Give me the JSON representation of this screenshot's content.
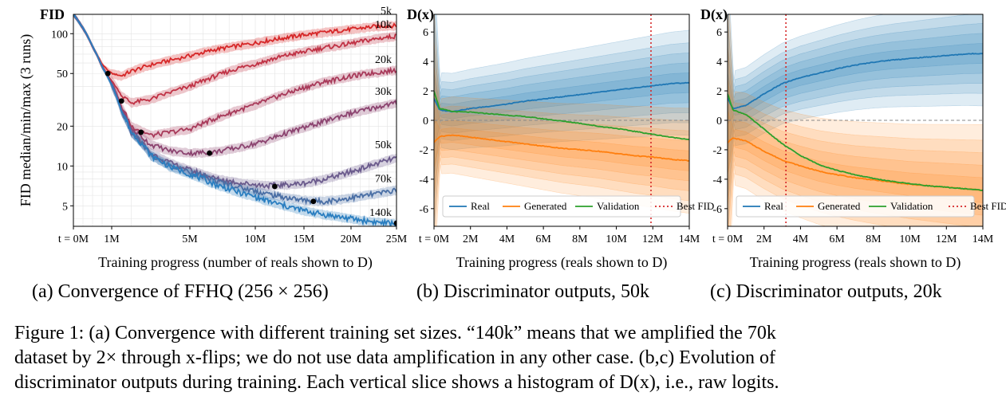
{
  "figure": {
    "subcaptions": [
      "(a) Convergence of FFHQ (256 × 256)",
      "(b) Discriminator outputs, 50k",
      "(c) Discriminator outputs, 20k"
    ],
    "caption_lines": [
      "Figure 1: (a) Convergence with different training set sizes. “140k” means that we amplified the 70k",
      "dataset by 2× through x-flips; we do not use data amplification in any other case. (b,c) Evolution of",
      "discriminator outputs during training. Each vertical slice shows a histogram of D(x), i.e., raw logits."
    ]
  },
  "chart_data": [
    {
      "type": "line",
      "corner_label": "FID",
      "ylabel": "FID median/min/max (3 runs)",
      "xlabel": "Training progress (number of reals shown to D)",
      "x_ticks": [
        "t = 0M",
        "1M",
        "5M",
        "10M",
        "15M",
        "20M",
        "25M"
      ],
      "y_ticks": [
        "5",
        "10",
        "20",
        "50",
        "100"
      ],
      "y_scale": "log",
      "ylim": [
        3.5,
        140
      ],
      "series": [
        {
          "name": "5k",
          "color": "#d62728",
          "x": [
            0,
            0.25,
            0.5,
            0.75,
            1,
            1.5,
            2,
            3,
            4,
            5,
            7,
            9,
            11,
            13,
            15,
            17,
            19,
            21,
            23,
            25
          ],
          "y": [
            140,
            110,
            80,
            58,
            50,
            48,
            52,
            58,
            63,
            68,
            76,
            82,
            88,
            93,
            98,
            102,
            106,
            110,
            114,
            115
          ],
          "best": [
            0.9,
            50
          ]
        },
        {
          "name": "10k",
          "color": "#c03245",
          "x": [
            0,
            0.25,
            0.5,
            0.75,
            1,
            1.5,
            2,
            3,
            4,
            5,
            7,
            9,
            11,
            13,
            15,
            17,
            19,
            21,
            23,
            25
          ],
          "y": [
            140,
            110,
            80,
            56,
            44,
            34,
            30,
            32,
            36,
            40,
            48,
            56,
            62,
            68,
            73,
            78,
            82,
            87,
            92,
            96
          ],
          "best": [
            1.5,
            31
          ]
        },
        {
          "name": "20k",
          "color": "#a83a5a",
          "x": [
            0,
            0.25,
            0.5,
            0.75,
            1,
            1.5,
            2,
            3,
            4,
            5,
            7,
            9,
            11,
            13,
            15,
            17,
            19,
            21,
            23,
            25
          ],
          "y": [
            140,
            110,
            80,
            56,
            42,
            28,
            20,
            17,
            18,
            19,
            23,
            27,
            31,
            35,
            39,
            43,
            46,
            49,
            51,
            53
          ],
          "best": [
            2.5,
            18
          ]
        },
        {
          "name": "30k",
          "color": "#8c4470",
          "x": [
            0,
            0.25,
            0.5,
            0.75,
            1,
            1.5,
            2,
            3,
            4,
            5,
            7,
            9,
            11,
            13,
            15,
            17,
            19,
            21,
            23,
            25
          ],
          "y": [
            140,
            110,
            80,
            56,
            42,
            27,
            19,
            14.5,
            13,
            12.5,
            12.8,
            14,
            15.5,
            17.5,
            19.5,
            21.5,
            24,
            26,
            28,
            30
          ],
          "best": [
            6.5,
            12.5
          ]
        },
        {
          "name": "50k",
          "color": "#6a5a8c",
          "x": [
            0,
            0.25,
            0.5,
            0.75,
            1,
            1.5,
            2,
            3,
            4,
            5,
            7,
            9,
            11,
            13,
            15,
            17,
            19,
            21,
            23,
            25
          ],
          "y": [
            140,
            110,
            80,
            56,
            41,
            26,
            18,
            12.5,
            10.5,
            9.3,
            8,
            7.4,
            7.1,
            7.2,
            7.4,
            7.9,
            8.6,
            9.5,
            10.5,
            11.5
          ],
          "best": [
            12,
            7
          ]
        },
        {
          "name": "70k",
          "color": "#4a6fa5",
          "x": [
            0,
            0.25,
            0.5,
            0.75,
            1,
            1.5,
            2,
            3,
            4,
            5,
            7,
            9,
            11,
            13,
            15,
            17,
            19,
            21,
            23,
            25
          ],
          "y": [
            140,
            110,
            80,
            56,
            41,
            26,
            18,
            12,
            10,
            9,
            7.7,
            6.8,
            6.2,
            5.8,
            5.5,
            5.4,
            5.6,
            5.9,
            6.2,
            6.6
          ],
          "best": [
            16,
            5.4
          ]
        },
        {
          "name": "140k",
          "color": "#2a7ec0",
          "x": [
            0,
            0.25,
            0.5,
            0.75,
            1,
            1.5,
            2,
            3,
            4,
            5,
            7,
            9,
            11,
            13,
            15,
            17,
            19,
            21,
            23,
            25
          ],
          "y": [
            140,
            110,
            80,
            56,
            41,
            26,
            18,
            12,
            9.8,
            8.7,
            7.2,
            6.2,
            5.5,
            5,
            4.6,
            4.3,
            4.1,
            3.9,
            3.75,
            3.65
          ],
          "best": [
            25,
            3.7
          ]
        }
      ]
    },
    {
      "type": "line",
      "corner_label": "D(x)",
      "xlabel": "Training progress (reals shown to D)",
      "x_ticks": [
        "t = 0M",
        "2M",
        "4M",
        "6M",
        "8M",
        "10M",
        "12M",
        "14M"
      ],
      "y_ticks": [
        "6",
        "4",
        "2",
        "0",
        "-2",
        "-4",
        "-6"
      ],
      "xlim": [
        0,
        14
      ],
      "ylim": [
        -7.2,
        7.2
      ],
      "best_fid_x": 11.9,
      "legend": [
        "Real",
        "Generated",
        "Validation",
        "Best FID"
      ],
      "legend_loc": "lower-center",
      "series": [
        {
          "name": "Real",
          "color": "#1f77b4",
          "x": [
            0,
            0.3,
            1,
            2,
            3,
            4,
            5,
            6,
            7,
            8,
            9,
            10,
            11,
            12,
            13,
            14
          ],
          "y": [
            1.5,
            0.7,
            0.6,
            0.8,
            0.95,
            1.1,
            1.3,
            1.45,
            1.6,
            1.75,
            1.9,
            2.05,
            2.2,
            2.35,
            2.5,
            2.55
          ]
        },
        {
          "name": "Generated",
          "color": "#ff7f0e",
          "x": [
            0,
            0.3,
            1,
            2,
            3,
            4,
            5,
            6,
            7,
            8,
            9,
            10,
            11,
            12,
            13,
            14
          ],
          "y": [
            -1.5,
            -1.1,
            -1.0,
            -1.15,
            -1.3,
            -1.45,
            -1.6,
            -1.75,
            -1.9,
            -2.0,
            -2.1,
            -2.25,
            -2.4,
            -2.5,
            -2.65,
            -2.75
          ]
        },
        {
          "name": "Validation",
          "color": "#2ca02c",
          "x": [
            0,
            0.3,
            1,
            2,
            3,
            4,
            5,
            6,
            7,
            8,
            9,
            10,
            11,
            12,
            13,
            14
          ],
          "y": [
            2.0,
            0.8,
            0.6,
            0.55,
            0.45,
            0.35,
            0.25,
            0.1,
            -0.05,
            -0.2,
            -0.4,
            -0.55,
            -0.75,
            -0.95,
            -1.15,
            -1.3
          ]
        }
      ]
    },
    {
      "type": "line",
      "corner_label": "D(x)",
      "xlabel": "Training progress (reals shown to D)",
      "x_ticks": [
        "t = 0M",
        "2M",
        "4M",
        "6M",
        "8M",
        "10M",
        "12M",
        "14M"
      ],
      "y_ticks": [
        "6",
        "4",
        "2",
        "0",
        "-2",
        "-4",
        "-6"
      ],
      "xlim": [
        0,
        14
      ],
      "ylim": [
        -7.2,
        7.2
      ],
      "best_fid_x": 3.2,
      "legend": [
        "Real",
        "Generated",
        "Validation",
        "Best FID"
      ],
      "legend_loc": "lower-center",
      "series": [
        {
          "name": "Real",
          "color": "#1f77b4",
          "x": [
            0,
            0.3,
            1,
            2,
            3,
            4,
            5,
            6,
            7,
            8,
            9,
            10,
            11,
            12,
            13,
            14
          ],
          "y": [
            1.5,
            0.8,
            1.0,
            1.8,
            2.5,
            2.9,
            3.2,
            3.5,
            3.75,
            3.95,
            4.1,
            4.2,
            4.3,
            4.4,
            4.5,
            4.55
          ]
        },
        {
          "name": "Generated",
          "color": "#ff7f0e",
          "x": [
            0,
            0.3,
            1,
            2,
            3,
            4,
            5,
            6,
            7,
            8,
            9,
            10,
            11,
            12,
            13,
            14
          ],
          "y": [
            -1.5,
            -1.2,
            -1.4,
            -2.1,
            -2.7,
            -3.1,
            -3.45,
            -3.7,
            -3.9,
            -4.05,
            -4.2,
            -4.35,
            -4.45,
            -4.55,
            -4.65,
            -4.75
          ]
        },
        {
          "name": "Validation",
          "color": "#2ca02c",
          "x": [
            0,
            0.3,
            1,
            2,
            3,
            4,
            5,
            6,
            7,
            8,
            9,
            10,
            11,
            12,
            13,
            14
          ],
          "y": [
            1.8,
            0.7,
            0.4,
            -0.6,
            -1.6,
            -2.4,
            -3.0,
            -3.4,
            -3.7,
            -3.95,
            -4.15,
            -4.3,
            -4.45,
            -4.55,
            -4.65,
            -4.75
          ]
        }
      ]
    }
  ]
}
